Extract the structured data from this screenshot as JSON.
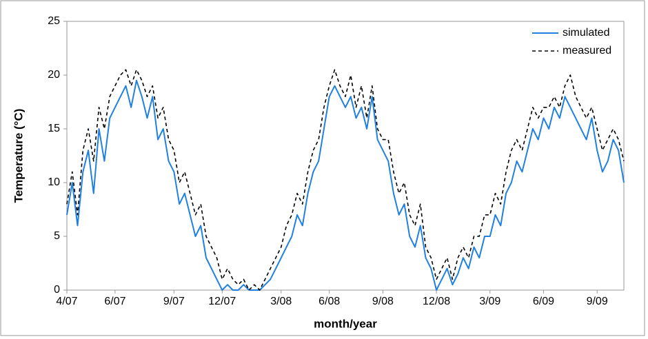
{
  "chart_data": {
    "type": "line",
    "x_label": "month/year",
    "y_label": "Temperature (°C)",
    "categories": [
      "4/07",
      null,
      null,
      null,
      null,
      null,
      null,
      null,
      null,
      "6/07",
      null,
      null,
      null,
      null,
      null,
      null,
      null,
      null,
      null,
      null,
      "9/07",
      null,
      null,
      null,
      null,
      null,
      null,
      null,
      null,
      "12/07",
      null,
      null,
      null,
      null,
      null,
      null,
      null,
      null,
      null,
      null,
      "3/08",
      null,
      null,
      null,
      null,
      null,
      null,
      null,
      null,
      "6/08",
      null,
      null,
      null,
      null,
      null,
      null,
      null,
      null,
      null,
      "9/08",
      null,
      null,
      null,
      null,
      null,
      null,
      null,
      null,
      null,
      "12/08",
      null,
      null,
      null,
      null,
      null,
      null,
      null,
      null,
      null,
      "3/09",
      null,
      null,
      null,
      null,
      null,
      null,
      null,
      null,
      null,
      "6/09",
      null,
      null,
      null,
      null,
      null,
      null,
      null,
      null,
      null,
      "9/09",
      null,
      null,
      null,
      null,
      null
    ],
    "series": [
      {
        "name": "simulated",
        "color": "#1f80e0",
        "dash": false,
        "values": [
          7,
          10,
          6,
          11,
          13,
          9,
          15,
          12,
          16,
          17,
          18,
          19,
          17,
          19.5,
          18,
          16,
          18,
          14,
          15,
          12,
          11,
          8,
          9,
          7,
          5,
          6,
          3,
          2,
          1,
          0,
          0.5,
          0,
          0,
          0.5,
          0,
          0,
          0,
          0.5,
          1,
          2,
          3,
          4,
          5,
          7,
          6,
          9,
          11,
          12,
          15,
          18,
          19,
          18,
          17,
          18,
          16,
          17,
          15,
          18,
          14,
          13,
          12,
          9,
          7,
          8,
          5,
          4,
          6,
          3,
          2,
          0,
          1,
          2,
          0.5,
          1.5,
          3,
          2,
          4,
          3,
          5,
          5,
          7,
          6,
          9,
          10,
          12,
          11,
          13,
          15,
          14,
          16,
          15,
          17,
          16,
          18,
          17,
          16,
          15,
          14,
          16,
          13,
          11,
          12,
          14,
          13,
          10
        ]
      },
      {
        "name": "measured",
        "color": "#000000",
        "dash": true,
        "values": [
          8,
          11,
          7,
          13,
          15,
          12,
          17,
          15,
          18,
          19,
          20,
          20.5,
          19,
          20.5,
          19.5,
          18,
          19,
          16,
          17,
          14,
          13,
          10,
          11,
          9,
          7,
          8,
          5,
          4,
          3,
          1,
          2,
          1,
          0.5,
          1,
          0,
          0.5,
          0,
          1,
          2,
          3,
          4,
          6,
          7,
          9,
          8,
          11,
          13,
          14,
          17,
          19,
          20.5,
          19,
          18,
          20,
          17,
          19,
          16,
          19,
          15,
          14,
          14,
          11,
          9,
          10,
          7,
          6,
          8,
          4,
          3,
          1,
          2,
          3,
          1,
          3,
          4,
          3,
          5,
          5,
          7,
          7,
          9,
          8,
          11,
          13,
          14,
          13,
          15,
          17,
          16,
          17,
          17,
          18,
          17,
          19,
          20,
          18,
          17,
          16,
          17,
          15,
          13,
          14,
          15,
          14,
          12
        ]
      }
    ],
    "ylim": [
      0,
      25
    ],
    "yticks": [
      0,
      5,
      10,
      15,
      20,
      25
    ],
    "grid": false,
    "legend": "upper right"
  }
}
